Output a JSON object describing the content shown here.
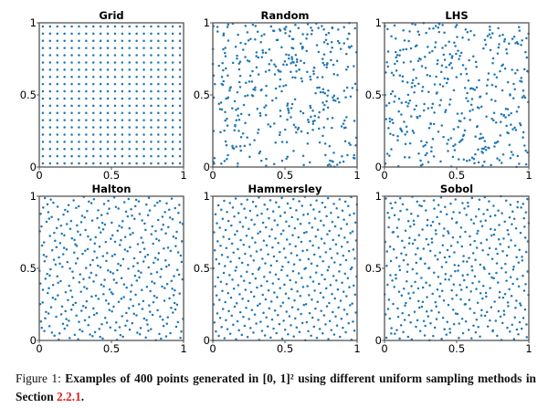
{
  "chart_data": [
    {
      "type": "scatter",
      "title": "Grid",
      "method": "grid",
      "n_points": 400,
      "xlim": [
        0,
        1
      ],
      "ylim": [
        0,
        1
      ],
      "xticks": [
        "0",
        "0.5",
        "1"
      ],
      "yticks": [
        "0",
        "0.5",
        "1"
      ],
      "color": "#1f77b4",
      "grid": false
    },
    {
      "type": "scatter",
      "title": "Random",
      "method": "uniform-random",
      "n_points": 400,
      "xlim": [
        0,
        1
      ],
      "ylim": [
        0,
        1
      ],
      "xticks": [
        "0",
        "0.5",
        "1"
      ],
      "yticks": [
        "0",
        "0.5",
        "1"
      ],
      "color": "#1f77b4",
      "grid": false
    },
    {
      "type": "scatter",
      "title": "LHS",
      "method": "latin-hypercube",
      "n_points": 400,
      "xlim": [
        0,
        1
      ],
      "ylim": [
        0,
        1
      ],
      "xticks": [
        "0",
        "0.5",
        "1"
      ],
      "yticks": [
        "0",
        "0.5",
        "1"
      ],
      "color": "#1f77b4",
      "grid": false
    },
    {
      "type": "scatter",
      "title": "Halton",
      "method": "halton",
      "n_points": 400,
      "xlim": [
        0,
        1
      ],
      "ylim": [
        0,
        1
      ],
      "xticks": [
        "0",
        "0.5",
        "1"
      ],
      "yticks": [
        "0",
        "0.5",
        "1"
      ],
      "color": "#1f77b4",
      "grid": false
    },
    {
      "type": "scatter",
      "title": "Hammersley",
      "method": "hammersley",
      "n_points": 400,
      "xlim": [
        0,
        1
      ],
      "ylim": [
        0,
        1
      ],
      "xticks": [
        "0",
        "0.5",
        "1"
      ],
      "yticks": [
        "0",
        "0.5",
        "1"
      ],
      "color": "#1f77b4",
      "grid": false
    },
    {
      "type": "scatter",
      "title": "Sobol",
      "method": "sobol",
      "n_points": 400,
      "xlim": [
        0,
        1
      ],
      "ylim": [
        0,
        1
      ],
      "xticks": [
        "0",
        "0.5",
        "1"
      ],
      "yticks": [
        "0",
        "0.5",
        "1"
      ],
      "color": "#1f77b4",
      "grid": false
    }
  ],
  "caption": {
    "label": "Figure 1:",
    "text_before": "Examples of 400 points generated in [0, 1]² using different uniform sampling methods in Section",
    "ref": "2.2.1",
    "text_after": "."
  }
}
